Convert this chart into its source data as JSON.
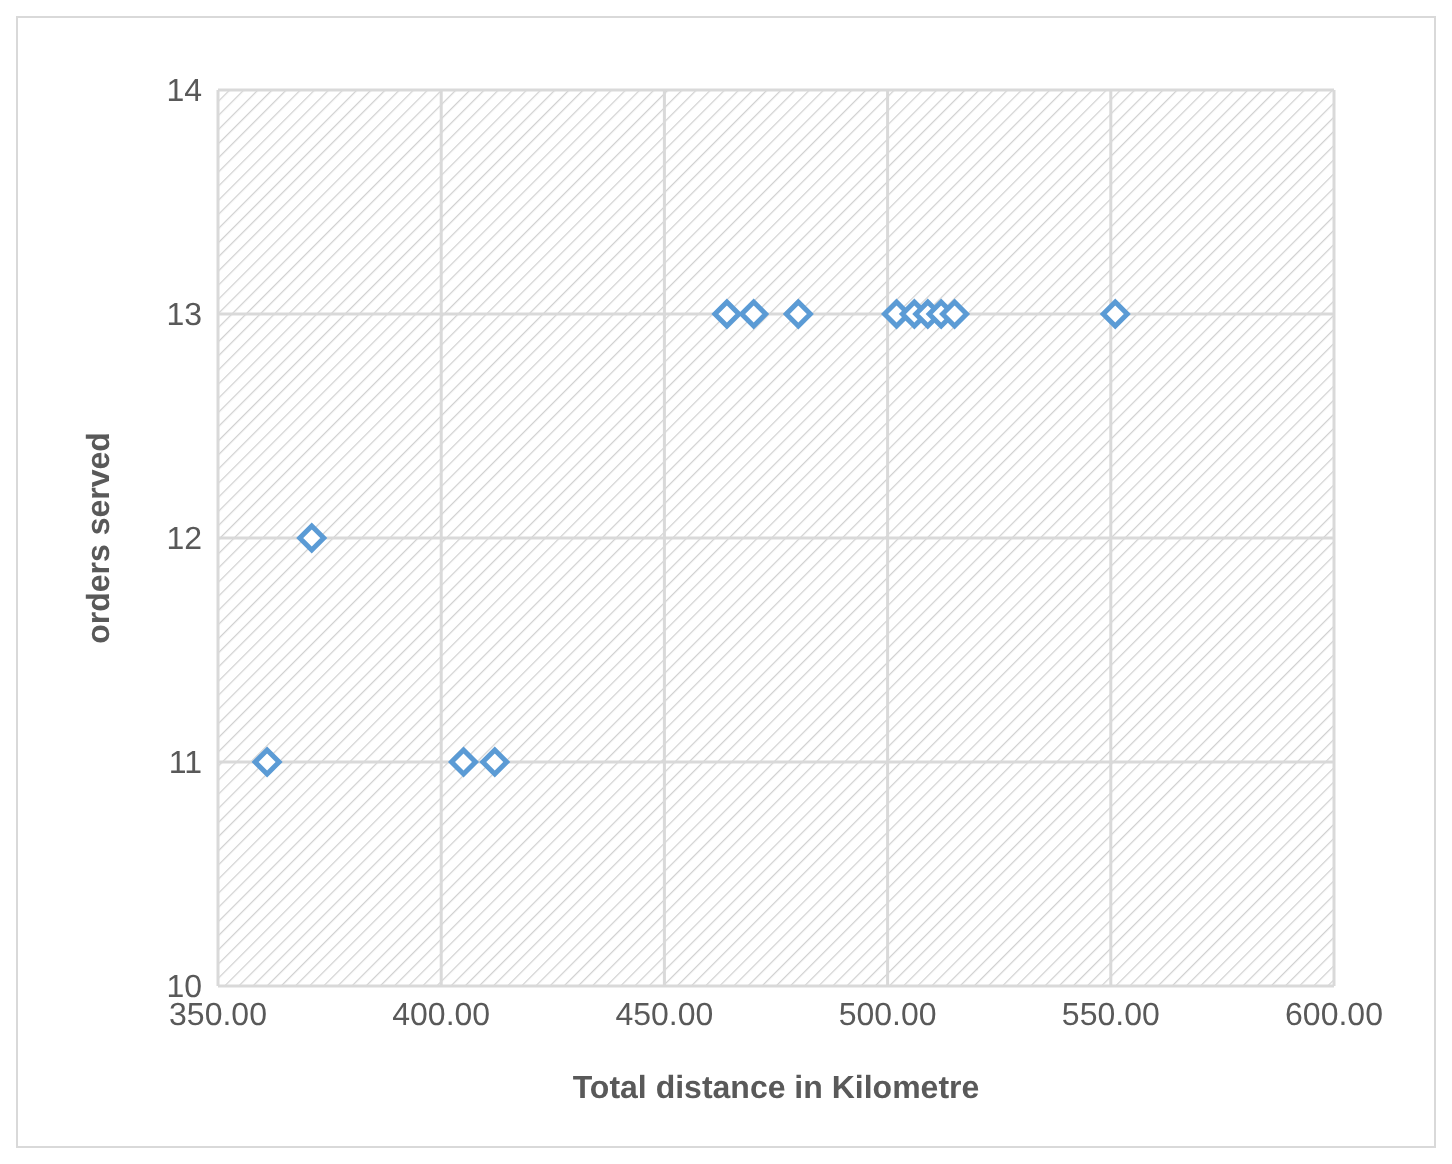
{
  "chart_data": {
    "type": "scatter",
    "xlabel": "Total distance in Kilometre",
    "ylabel": "orders served",
    "x": [
      361,
      371,
      405,
      412,
      464,
      470,
      480,
      502,
      506,
      509,
      512,
      515,
      551
    ],
    "series": [
      {
        "color": "#5b9bd5",
        "values": [
          11,
          12,
          11,
          11,
          13,
          13,
          13,
          13,
          13,
          13,
          13,
          13,
          13
        ]
      }
    ],
    "xlim": [
      350,
      600
    ],
    "xticks": [
      {
        "value": 350,
        "label": "350.00"
      },
      {
        "value": 400,
        "label": "400.00"
      },
      {
        "value": 450,
        "label": "450.00"
      },
      {
        "value": 500,
        "label": "500.00"
      },
      {
        "value": 550,
        "label": "550.00"
      },
      {
        "value": 600,
        "label": "600.00"
      }
    ],
    "ylim": [
      10,
      14
    ],
    "yticks": [
      10,
      11,
      12,
      13,
      14
    ],
    "grid": true,
    "marker": "diamond",
    "legend": false
  }
}
